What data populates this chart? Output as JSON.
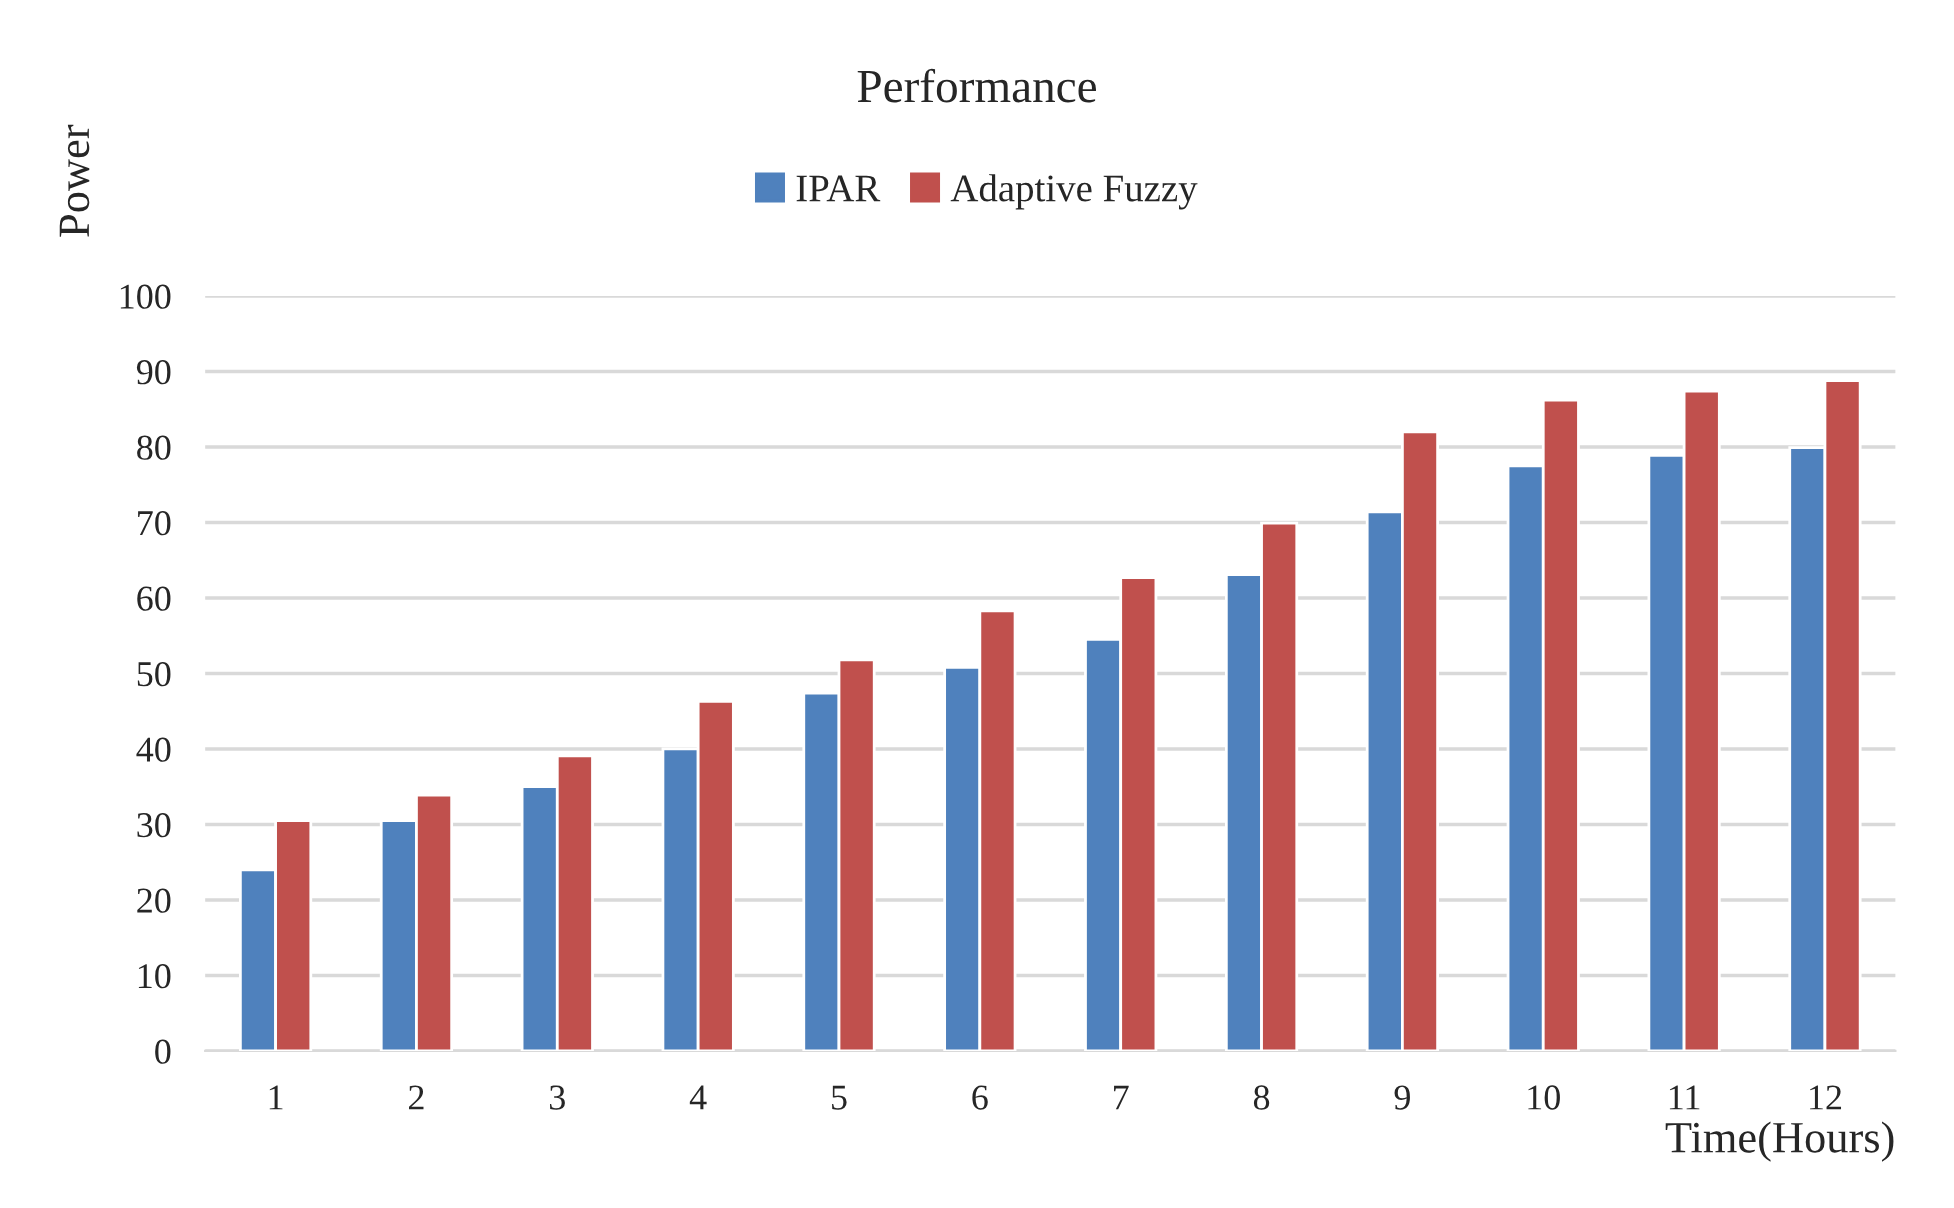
{
  "chart_data": {
    "type": "bar",
    "title": "Performance",
    "xlabel": "Time(Hours)",
    "ylabel": "Power",
    "categories": [
      "1",
      "2",
      "3",
      "4",
      "5",
      "6",
      "7",
      "8",
      "9",
      "10",
      "11",
      "12"
    ],
    "series": [
      {
        "name": "IPAR",
        "color": "#4f81bd",
        "values": [
          24,
          30.5,
          35,
          40,
          47.4,
          50.8,
          54.5,
          63.1,
          71.4,
          77.5,
          78.9,
          79.9
        ]
      },
      {
        "name": "Adaptive Fuzzy",
        "color": "#c0504d",
        "values": [
          30.5,
          33.9,
          39.1,
          46.3,
          51.8,
          58.3,
          62.7,
          69.9,
          82,
          86.2,
          87.4,
          88.8
        ]
      }
    ],
    "ylim": [
      0,
      100
    ],
    "yticks": [
      0,
      10,
      20,
      30,
      40,
      50,
      60,
      70,
      80,
      90,
      100
    ],
    "grid": "y",
    "legend": "top"
  }
}
